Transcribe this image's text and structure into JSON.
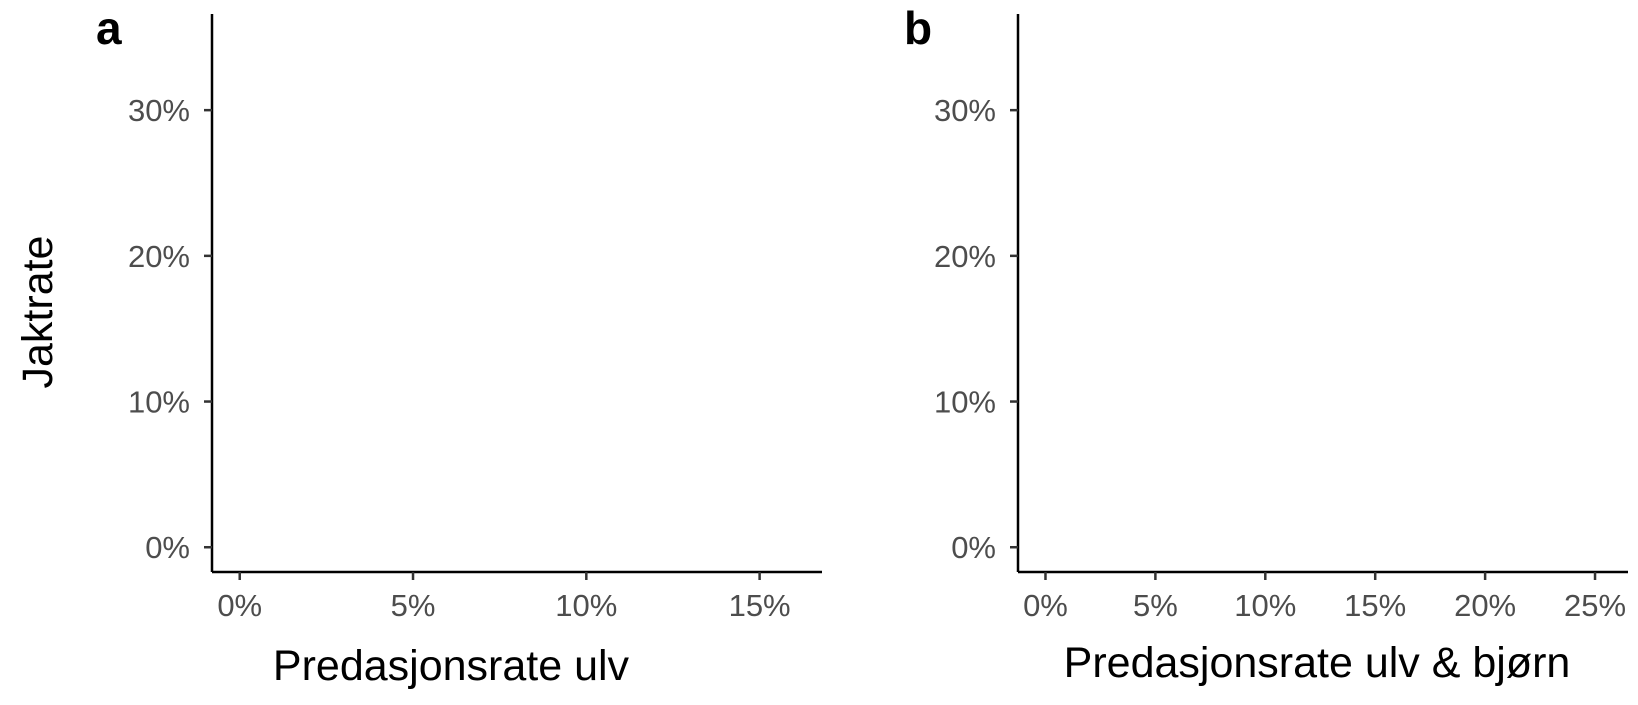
{
  "y_axis_title": "Jaktrate",
  "chart_data": [
    {
      "type": "scatter",
      "panel_tag": "a",
      "xlabel": "Predasjonsrate ulv",
      "ylabel": "Jaktrate",
      "x_ticks": [
        0,
        5,
        10,
        15
      ],
      "x_tick_labels": [
        "0%",
        "5%",
        "10%",
        "15%"
      ],
      "y_ticks": [
        0,
        10,
        20,
        30
      ],
      "y_tick_labels": [
        "0%",
        "10%",
        "20%",
        "30%"
      ],
      "xlim": [
        -0.8,
        16.8
      ],
      "ylim": [
        -1.7,
        36.6
      ],
      "grid": false,
      "series": []
    },
    {
      "type": "scatter",
      "panel_tag": "b",
      "xlabel": "Predasjonsrate ulv & bjørn",
      "ylabel": "",
      "x_ticks": [
        0,
        5,
        10,
        15,
        20,
        25
      ],
      "x_tick_labels": [
        "0%",
        "5%",
        "10%",
        "15%",
        "20%",
        "25%"
      ],
      "y_ticks": [
        0,
        10,
        20,
        30
      ],
      "y_tick_labels": [
        "0%",
        "10%",
        "20%",
        "30%"
      ],
      "xlim": [
        -1.25,
        26.5
      ],
      "ylim": [
        -1.7,
        36.6
      ],
      "grid": false,
      "series": []
    }
  ]
}
